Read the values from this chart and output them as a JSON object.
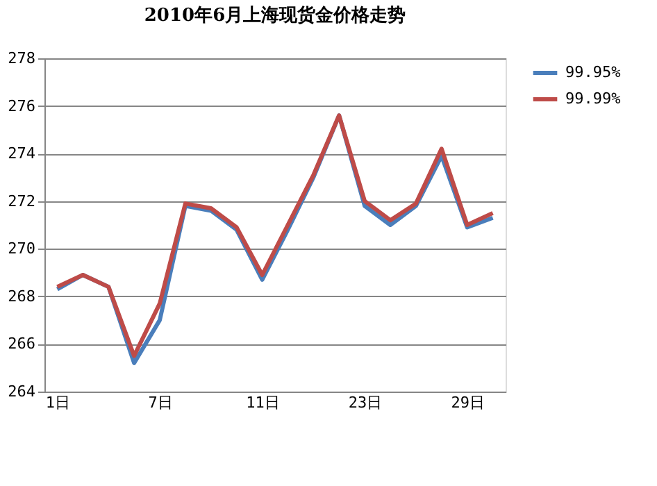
{
  "chart_data": {
    "type": "line",
    "title": "2010年6月上海现货金价格走势",
    "categories": [
      "1日",
      null,
      null,
      null,
      "7日",
      null,
      null,
      null,
      "11日",
      null,
      null,
      null,
      "23日",
      null,
      null,
      null,
      "29日",
      null
    ],
    "series": [
      {
        "name": "99.95%",
        "color": "#4a7ebb",
        "values": [
          268.3,
          268.9,
          268.4,
          265.2,
          267.0,
          271.8,
          271.6,
          270.8,
          268.7,
          270.8,
          273.0,
          275.6,
          271.8,
          271.0,
          271.8,
          273.9,
          270.9,
          271.3
        ]
      },
      {
        "name": "99.99%",
        "color": "#be4b48",
        "values": [
          268.4,
          268.9,
          268.4,
          265.5,
          267.7,
          271.9,
          271.7,
          270.9,
          268.9,
          271.0,
          273.1,
          275.6,
          272.0,
          271.2,
          271.9,
          274.2,
          271.0,
          271.5
        ]
      }
    ],
    "ylim": [
      264,
      278
    ],
    "yticks": [
      264,
      266,
      268,
      270,
      272,
      274,
      276,
      278
    ],
    "grid": "y",
    "legend": "right",
    "marker": "none",
    "line_style": "solid"
  }
}
